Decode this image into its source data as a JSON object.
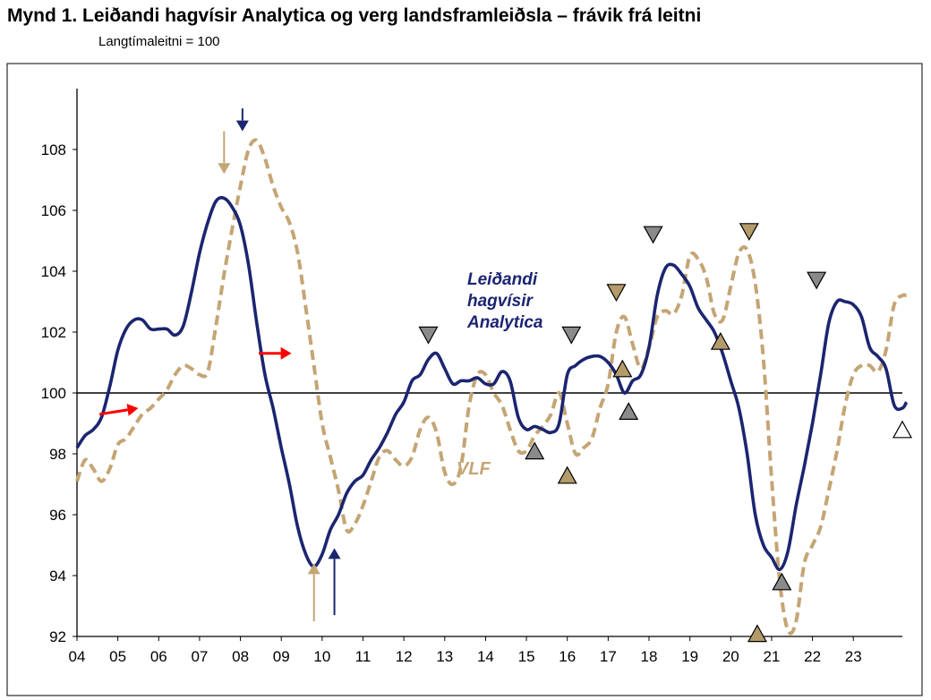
{
  "title": "Mynd 1. Leiðandi hagvísir Analytica og verg landsframleiðsla – frávik frá leitni",
  "subtitle": "Langtímaleitni = 100",
  "colors": {
    "analytica": "#1b2570",
    "vlf": "#c4a574",
    "red_arrow": "#ff0000",
    "gray_marker": "#8a8a8a",
    "tan_marker": "#b49b6c"
  },
  "chart_data": {
    "type": "line",
    "x_label_values": [
      2004,
      2005,
      2006,
      2007,
      2008,
      2009,
      2010,
      2011,
      2012,
      2013,
      2014,
      2015,
      2016,
      2017,
      2018,
      2019,
      2020,
      2021,
      2022,
      2023
    ],
    "x_tick_labels": [
      "04",
      "05",
      "06",
      "07",
      "08",
      "09",
      "10",
      "11",
      "12",
      "13",
      "14",
      "15",
      "16",
      "17",
      "18",
      "19",
      "20",
      "21",
      "22",
      "23"
    ],
    "xlim": [
      2004,
      2024.2
    ],
    "ylim": [
      92,
      110
    ],
    "y_ticks": [
      92,
      94,
      96,
      98,
      100,
      102,
      104,
      106,
      108
    ],
    "reference_line": 100,
    "series": [
      {
        "name": "Leiðandi hagvísir Analytica",
        "label_lines": [
          "Leiðandi",
          "hagvísir",
          "Analytica"
        ],
        "style": "solid",
        "points": [
          [
            2004.0,
            98.2
          ],
          [
            2004.2,
            98.6
          ],
          [
            2004.4,
            98.8
          ],
          [
            2004.6,
            99.2
          ],
          [
            2004.8,
            100.2
          ],
          [
            2005.0,
            101.4
          ],
          [
            2005.2,
            102.1
          ],
          [
            2005.4,
            102.4
          ],
          [
            2005.6,
            102.4
          ],
          [
            2005.8,
            102.1
          ],
          [
            2006.0,
            102.1
          ],
          [
            2006.2,
            102.1
          ],
          [
            2006.4,
            101.9
          ],
          [
            2006.6,
            102.2
          ],
          [
            2006.8,
            103.3
          ],
          [
            2007.0,
            104.6
          ],
          [
            2007.2,
            105.6
          ],
          [
            2007.4,
            106.3
          ],
          [
            2007.6,
            106.4
          ],
          [
            2007.8,
            106.1
          ],
          [
            2008.0,
            105.5
          ],
          [
            2008.2,
            104.2
          ],
          [
            2008.4,
            102.3
          ],
          [
            2008.6,
            100.6
          ],
          [
            2008.8,
            99.5
          ],
          [
            2009.0,
            98.2
          ],
          [
            2009.2,
            97.0
          ],
          [
            2009.4,
            95.6
          ],
          [
            2009.6,
            94.7
          ],
          [
            2009.8,
            94.3
          ],
          [
            2010.0,
            94.7
          ],
          [
            2010.2,
            95.5
          ],
          [
            2010.4,
            96.0
          ],
          [
            2010.6,
            96.7
          ],
          [
            2010.8,
            97.1
          ],
          [
            2011.0,
            97.3
          ],
          [
            2011.2,
            97.8
          ],
          [
            2011.4,
            98.2
          ],
          [
            2011.6,
            98.7
          ],
          [
            2011.8,
            99.3
          ],
          [
            2012.0,
            99.7
          ],
          [
            2012.2,
            100.4
          ],
          [
            2012.4,
            100.6
          ],
          [
            2012.6,
            101.1
          ],
          [
            2012.8,
            101.3
          ],
          [
            2013.0,
            100.8
          ],
          [
            2013.2,
            100.3
          ],
          [
            2013.4,
            100.4
          ],
          [
            2013.6,
            100.4
          ],
          [
            2013.8,
            100.5
          ],
          [
            2014.0,
            100.3
          ],
          [
            2014.2,
            100.3
          ],
          [
            2014.4,
            100.7
          ],
          [
            2014.6,
            100.4
          ],
          [
            2014.8,
            99.2
          ],
          [
            2015.0,
            98.8
          ],
          [
            2015.2,
            98.9
          ],
          [
            2015.4,
            98.8
          ],
          [
            2015.6,
            98.7
          ],
          [
            2015.8,
            99.0
          ],
          [
            2016.0,
            100.6
          ],
          [
            2016.2,
            100.9
          ],
          [
            2016.4,
            101.1
          ],
          [
            2016.6,
            101.2
          ],
          [
            2016.8,
            101.2
          ],
          [
            2017.0,
            101.0
          ],
          [
            2017.2,
            100.6
          ],
          [
            2017.4,
            100.0
          ],
          [
            2017.6,
            100.4
          ],
          [
            2017.8,
            100.6
          ],
          [
            2018.0,
            101.5
          ],
          [
            2018.2,
            103.2
          ],
          [
            2018.4,
            104.1
          ],
          [
            2018.6,
            104.2
          ],
          [
            2018.8,
            103.9
          ],
          [
            2019.0,
            103.5
          ],
          [
            2019.2,
            102.8
          ],
          [
            2019.4,
            102.4
          ],
          [
            2019.6,
            102.0
          ],
          [
            2019.8,
            101.3
          ],
          [
            2020.0,
            100.4
          ],
          [
            2020.2,
            99.5
          ],
          [
            2020.4,
            98.0
          ],
          [
            2020.6,
            96.0
          ],
          [
            2020.8,
            95.0
          ],
          [
            2021.0,
            94.6
          ],
          [
            2021.2,
            94.2
          ],
          [
            2021.4,
            94.8
          ],
          [
            2021.6,
            96.3
          ],
          [
            2021.8,
            97.6
          ],
          [
            2022.0,
            99.0
          ],
          [
            2022.2,
            100.6
          ],
          [
            2022.4,
            102.3
          ],
          [
            2022.6,
            103.0
          ],
          [
            2022.8,
            103.0
          ],
          [
            2023.0,
            102.9
          ],
          [
            2023.2,
            102.5
          ],
          [
            2023.4,
            101.5
          ],
          [
            2023.6,
            101.2
          ],
          [
            2023.8,
            100.8
          ],
          [
            2024.0,
            99.6
          ],
          [
            2024.2,
            99.5
          ],
          [
            2024.3,
            99.7
          ]
        ]
      },
      {
        "name": "VLF",
        "style": "dashed",
        "points": [
          [
            2004.0,
            97.1
          ],
          [
            2004.2,
            97.8
          ],
          [
            2004.4,
            97.5
          ],
          [
            2004.6,
            97.1
          ],
          [
            2004.8,
            97.5
          ],
          [
            2005.0,
            98.3
          ],
          [
            2005.2,
            98.5
          ],
          [
            2005.4,
            98.9
          ],
          [
            2005.6,
            99.3
          ],
          [
            2005.8,
            99.5
          ],
          [
            2006.0,
            99.8
          ],
          [
            2006.2,
            100.1
          ],
          [
            2006.4,
            100.6
          ],
          [
            2006.6,
            100.9
          ],
          [
            2006.8,
            100.8
          ],
          [
            2007.0,
            100.6
          ],
          [
            2007.2,
            100.7
          ],
          [
            2007.4,
            102.2
          ],
          [
            2007.6,
            103.9
          ],
          [
            2007.8,
            105.4
          ],
          [
            2008.0,
            106.8
          ],
          [
            2008.2,
            108.0
          ],
          [
            2008.4,
            108.3
          ],
          [
            2008.6,
            107.7
          ],
          [
            2008.8,
            106.8
          ],
          [
            2009.0,
            106.1
          ],
          [
            2009.2,
            105.6
          ],
          [
            2009.4,
            104.6
          ],
          [
            2009.6,
            102.8
          ],
          [
            2009.8,
            100.9
          ],
          [
            2010.0,
            99.0
          ],
          [
            2010.2,
            97.9
          ],
          [
            2010.4,
            96.8
          ],
          [
            2010.6,
            95.5
          ],
          [
            2010.8,
            95.7
          ],
          [
            2011.0,
            96.3
          ],
          [
            2011.2,
            97.1
          ],
          [
            2011.4,
            97.9
          ],
          [
            2011.6,
            98.1
          ],
          [
            2011.8,
            97.8
          ],
          [
            2012.0,
            97.6
          ],
          [
            2012.2,
            97.9
          ],
          [
            2012.4,
            98.8
          ],
          [
            2012.6,
            99.2
          ],
          [
            2012.8,
            98.7
          ],
          [
            2013.0,
            97.4
          ],
          [
            2013.2,
            97.0
          ],
          [
            2013.4,
            97.6
          ],
          [
            2013.6,
            99.6
          ],
          [
            2013.8,
            100.6
          ],
          [
            2014.0,
            100.6
          ],
          [
            2014.2,
            100.0
          ],
          [
            2014.4,
            99.6
          ],
          [
            2014.6,
            98.8
          ],
          [
            2014.8,
            98.1
          ],
          [
            2015.0,
            98.1
          ],
          [
            2015.2,
            98.6
          ],
          [
            2015.4,
            98.9
          ],
          [
            2015.6,
            99.3
          ],
          [
            2015.8,
            100.0
          ],
          [
            2016.0,
            99.0
          ],
          [
            2016.2,
            98.0
          ],
          [
            2016.4,
            98.2
          ],
          [
            2016.6,
            98.5
          ],
          [
            2016.8,
            99.5
          ],
          [
            2017.0,
            100.3
          ],
          [
            2017.2,
            102.0
          ],
          [
            2017.4,
            102.5
          ],
          [
            2017.6,
            101.6
          ],
          [
            2017.8,
            100.8
          ],
          [
            2018.0,
            101.5
          ],
          [
            2018.2,
            102.5
          ],
          [
            2018.4,
            102.7
          ],
          [
            2018.6,
            102.6
          ],
          [
            2018.8,
            103.2
          ],
          [
            2019.0,
            104.5
          ],
          [
            2019.2,
            104.4
          ],
          [
            2019.4,
            103.8
          ],
          [
            2019.6,
            102.6
          ],
          [
            2019.8,
            102.4
          ],
          [
            2020.0,
            103.5
          ],
          [
            2020.2,
            104.6
          ],
          [
            2020.4,
            104.7
          ],
          [
            2020.6,
            103.6
          ],
          [
            2020.8,
            101.1
          ],
          [
            2021.0,
            97.2
          ],
          [
            2021.2,
            93.8
          ],
          [
            2021.4,
            92.2
          ],
          [
            2021.6,
            92.5
          ],
          [
            2021.8,
            94.4
          ],
          [
            2022.0,
            95.0
          ],
          [
            2022.2,
            95.6
          ],
          [
            2022.4,
            96.8
          ],
          [
            2022.6,
            98.1
          ],
          [
            2022.8,
            99.6
          ],
          [
            2023.0,
            100.6
          ],
          [
            2023.2,
            100.9
          ],
          [
            2023.4,
            100.9
          ],
          [
            2023.6,
            100.7
          ],
          [
            2023.8,
            101.4
          ],
          [
            2024.0,
            102.9
          ],
          [
            2024.2,
            103.2
          ],
          [
            2024.3,
            103.2
          ]
        ]
      }
    ],
    "series_label_vlf": "VLF",
    "annotations": {
      "red_arrows": [
        [
          2004.55,
          99.3,
          2005.5,
          99.5
        ],
        [
          2008.45,
          101.3,
          2009.25,
          101.3
        ]
      ],
      "navy_arrows": [
        [
          2008.05,
          109.35,
          2008.05,
          108.6
        ],
        [
          2010.3,
          92.7,
          2010.3,
          94.9
        ]
      ],
      "tan_arrows": [
        [
          2007.6,
          108.6,
          2007.6,
          107.2
        ],
        [
          2009.8,
          92.5,
          2009.8,
          94.4
        ]
      ],
      "gray_down_triangles": [
        [
          2012.6,
          101.9
        ],
        [
          2016.1,
          101.9
        ],
        [
          2018.1,
          105.2
        ],
        [
          2022.1,
          103.7
        ]
      ],
      "gray_up_triangles": [
        [
          2015.2,
          98.1
        ],
        [
          2017.5,
          99.4
        ],
        [
          2021.25,
          93.8
        ]
      ],
      "tan_down_triangles": [
        [
          2017.2,
          103.3
        ],
        [
          2020.45,
          105.3
        ]
      ],
      "tan_up_triangles": [
        [
          2016.0,
          97.3
        ],
        [
          2017.35,
          100.8
        ],
        [
          2019.75,
          101.7
        ],
        [
          2020.65,
          92.1
        ]
      ],
      "white_up_triangles": [
        [
          2024.2,
          98.8
        ]
      ]
    }
  }
}
